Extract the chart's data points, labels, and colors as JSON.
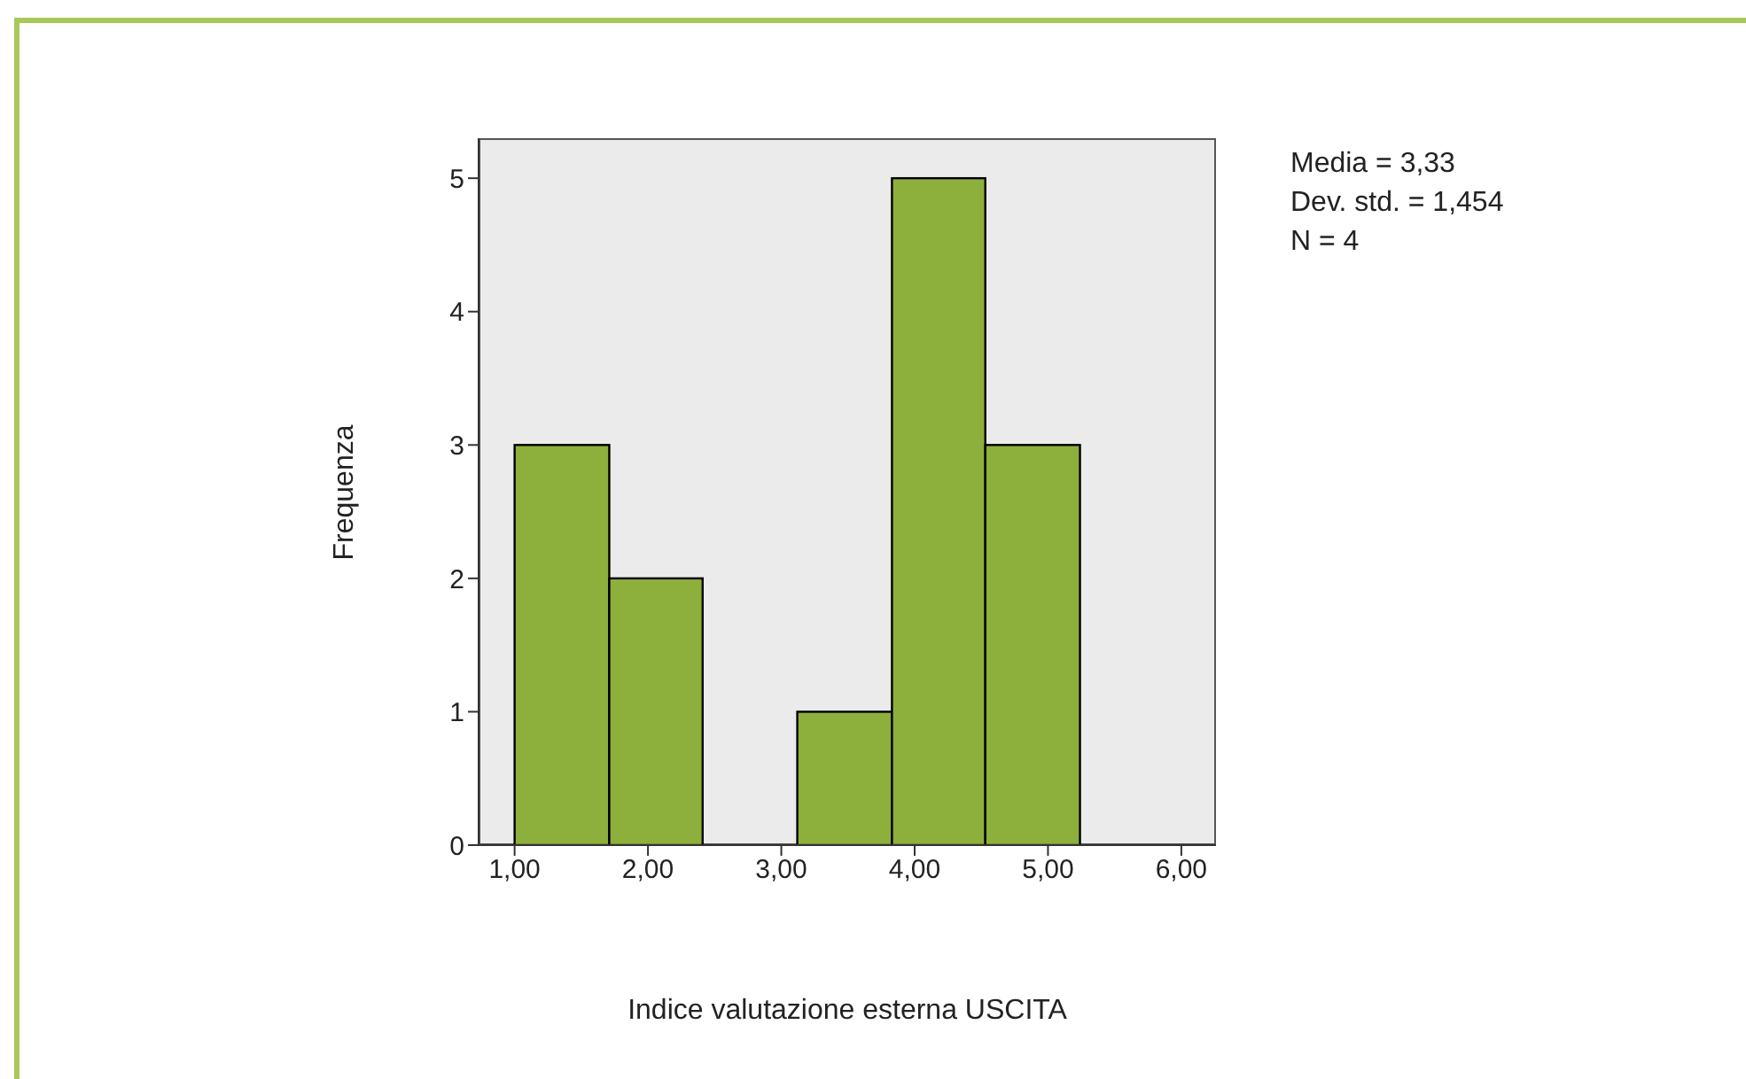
{
  "chart_data": {
    "type": "histogram",
    "xlabel": "Indice valutazione esterna USCITA",
    "ylabel": "Frequenza",
    "bins": [
      1.0,
      1.71,
      2.41,
      3.12,
      3.83,
      4.53,
      5.24
    ],
    "values": [
      3,
      2,
      0,
      1,
      5,
      3
    ],
    "color": "#8db03c",
    "xlim": [
      0.73,
      6.26
    ],
    "xticks": [
      {
        "value": 1,
        "label": "1,00"
      },
      {
        "value": 2,
        "label": "2,00"
      },
      {
        "value": 3,
        "label": "3,00"
      },
      {
        "value": 4,
        "label": "4,00"
      },
      {
        "value": 5,
        "label": "5,00"
      },
      {
        "value": 6,
        "label": "6,00"
      }
    ],
    "ylim": [
      0,
      5.3
    ],
    "yticks": [
      0,
      1,
      2,
      3,
      4,
      5
    ],
    "annotations": [
      "Media = 3,33",
      "Dev. std. = 1,454",
      "N = 4"
    ]
  }
}
